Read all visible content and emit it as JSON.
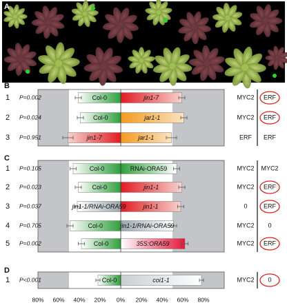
{
  "panel_a": {
    "letter": "A"
  },
  "panels": [
    {
      "letter": "B",
      "rows": [
        {
          "n": "1",
          "p": "P=0.002",
          "left": {
            "label": "Col-0",
            "italic": false,
            "value": 41,
            "err": 3,
            "colors": [
              "#ffffff",
              "#2ea03c"
            ]
          },
          "right": {
            "label": "jin1-7",
            "italic": true,
            "value": 59,
            "err": 3,
            "colors": [
              "#e21b22",
              "#f6d3cf"
            ]
          },
          "col1": "MYC2",
          "col2": "ERF",
          "col2_circled": true
        },
        {
          "n": "2",
          "p": "P=0.024",
          "left": {
            "label": "Col-0",
            "italic": false,
            "value": 39,
            "err": 3,
            "colors": [
              "#ffffff",
              "#2ea03c"
            ]
          },
          "right": {
            "label": "jar1-1",
            "italic": true,
            "value": 61,
            "err": 3,
            "colors": [
              "#f39a1e",
              "#fbe3c1"
            ]
          },
          "col1": "MYC2",
          "col2": "ERF",
          "col2_circled": true
        },
        {
          "n": "3",
          "p": "P=0.951",
          "left": {
            "label": "jin1-7",
            "italic": true,
            "value": 51,
            "err": 5,
            "colors": [
              "#f6d3cf",
              "#e21b22"
            ]
          },
          "right": {
            "label": "jar1-1",
            "italic": true,
            "value": 49,
            "err": 5,
            "colors": [
              "#f39a1e",
              "#fbe3c1"
            ]
          },
          "col1": "ERF",
          "col2": "ERF",
          "col2_circled": false
        }
      ]
    },
    {
      "letter": "C",
      "rows": [
        {
          "n": "1",
          "p": "P=0.105",
          "left": {
            "label": "Col-0",
            "italic": false,
            "value": 46,
            "err": 3,
            "colors": [
              "#ffffff",
              "#2ea03c"
            ]
          },
          "right": {
            "label": "RNAi-ORA59",
            "italic": false,
            "value": 54,
            "err": 3,
            "colors": [
              "#2ea03c",
              "#ffffff"
            ]
          },
          "col1": "MYC2",
          "col2": "MYC2",
          "col2_circled": false
        },
        {
          "n": "2",
          "p": "P=0.023",
          "left": {
            "label": "Col-0",
            "italic": false,
            "value": 41,
            "err": 3,
            "colors": [
              "#ffffff",
              "#2ea03c"
            ]
          },
          "right": {
            "label": "jin1-1",
            "italic": true,
            "value": 59,
            "err": 3,
            "colors": [
              "#e21b22",
              "#f6d3cf"
            ]
          },
          "col1": "MYC2",
          "col2": "ERF",
          "col2_circled": true
        },
        {
          "n": "3",
          "p": "P=0.037",
          "left": {
            "label": "jin1-1/RNAi-ORA59",
            "italic": true,
            "value": 42,
            "err": 3,
            "colors": [
              "#ffffff",
              "#9aa6ad"
            ]
          },
          "right": {
            "label": "jin1-1",
            "italic": true,
            "value": 58,
            "err": 3,
            "colors": [
              "#e21b22",
              "#f6d3cf"
            ]
          },
          "col1": "0",
          "col2": "ERF",
          "col2_circled": true
        },
        {
          "n": "4",
          "p": "P=0.705",
          "left": {
            "label": "Col-0",
            "italic": false,
            "value": 49,
            "err": 3,
            "colors": [
              "#ffffff",
              "#2ea03c"
            ]
          },
          "right": {
            "label": "jin1-1/RNAi-ORA59",
            "italic": true,
            "value": 51,
            "err": 3,
            "colors": [
              "#9aa6ad",
              "#ffffff"
            ]
          },
          "col1": "MYC2",
          "col2": "0",
          "col2_circled": false
        },
        {
          "n": "5",
          "p": "P=0.002",
          "left": {
            "label": "Col-0",
            "italic": false,
            "value": 38,
            "err": 3,
            "colors": [
              "#ffffff",
              "#2ea03c"
            ]
          },
          "right": {
            "label": "35S:ORA59",
            "italic": true,
            "value": 62,
            "err": 3,
            "colors": [
              "#ffffff",
              "#e4173d"
            ]
          },
          "col1": "MYC2",
          "col2": "ERF",
          "col2_circled": true
        }
      ]
    },
    {
      "letter": "D",
      "rows": [
        {
          "n": "1",
          "p": "P<0.001",
          "left": {
            "label": "Col-0",
            "italic": false,
            "value": 22,
            "err": 2,
            "colors": [
              "#ffffff",
              "#2ea03c"
            ]
          },
          "right": {
            "label": "coi1-1",
            "italic": true,
            "value": 78,
            "err": 2,
            "colors": [
              "#c9cfd2",
              "#ffffff"
            ]
          },
          "col1": "MYC2",
          "col2": "0",
          "col2_circled": true
        }
      ]
    }
  ],
  "axis": {
    "ticks": [
      "80%",
      "60%",
      "40%",
      "20%",
      "0%",
      "20%",
      "40%",
      "60%",
      "80%"
    ],
    "tick_values": [
      -80,
      -60,
      -40,
      -20,
      0,
      20,
      40,
      60,
      80
    ],
    "range": [
      -80,
      80
    ],
    "shaded_beyond": 50
  }
}
